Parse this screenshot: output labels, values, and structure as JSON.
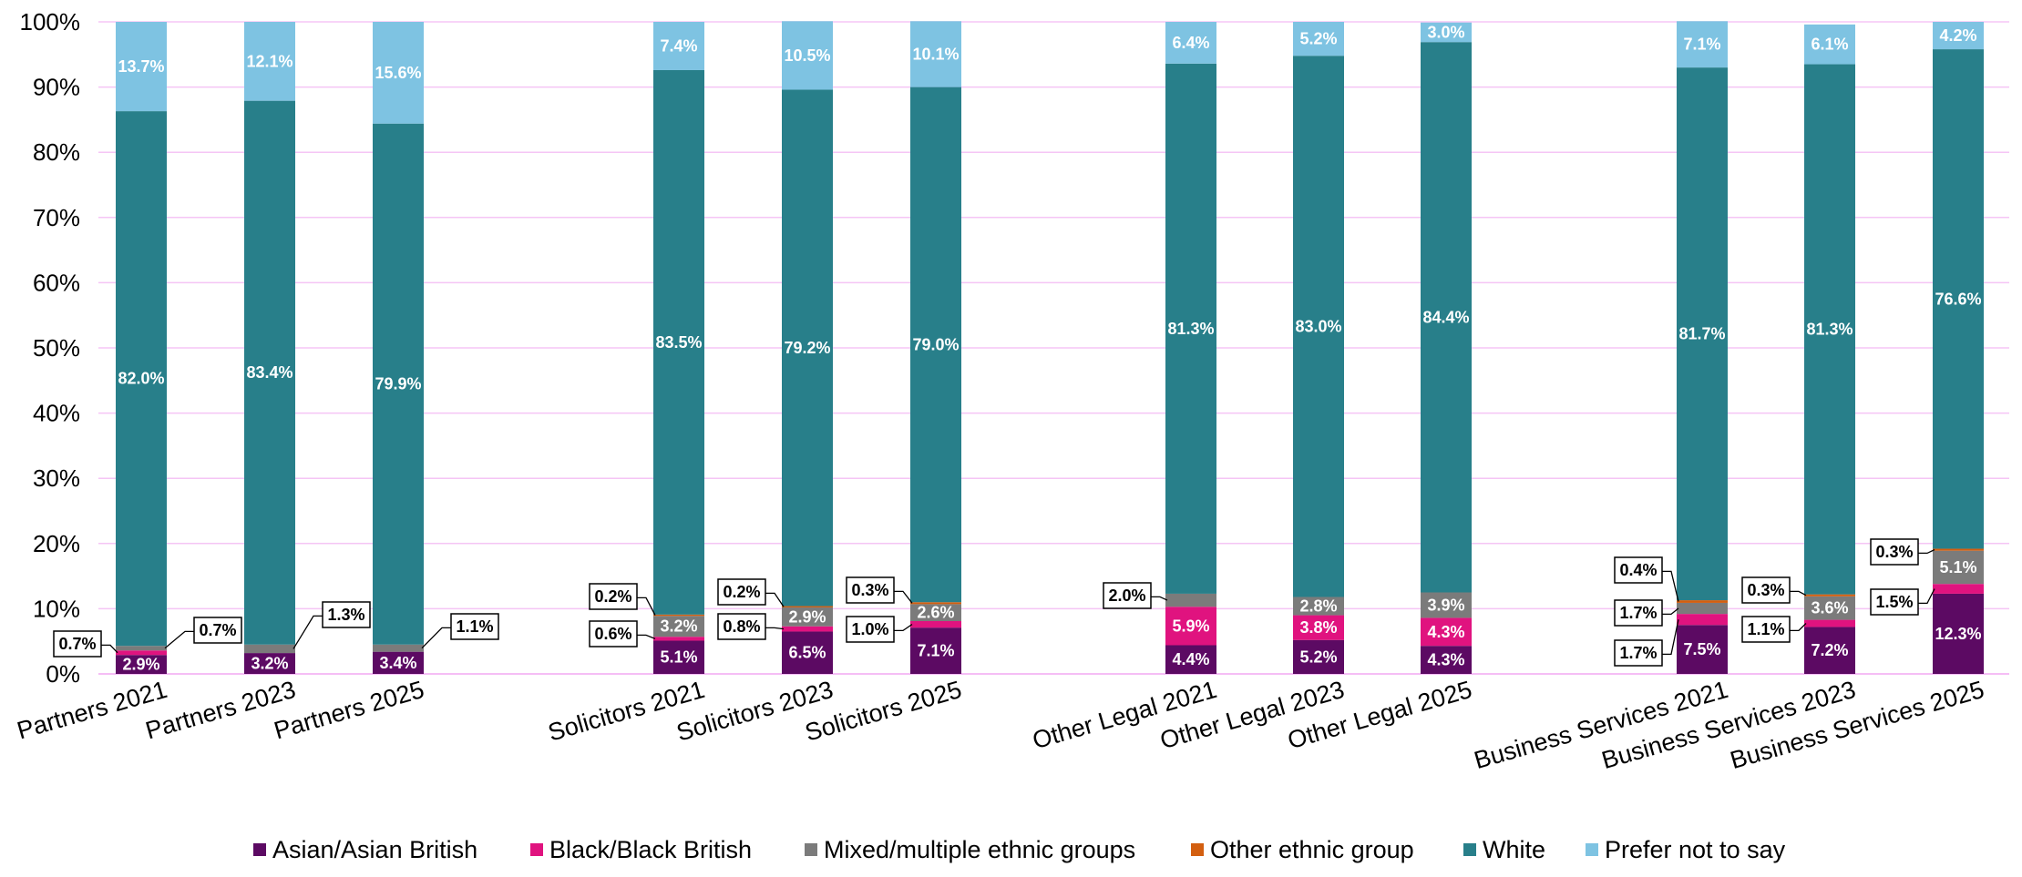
{
  "chart_data": {
    "type": "bar",
    "stacked": true,
    "categories": [
      "Partners 2021",
      "Partners 2023",
      "Partners 2025",
      "Solicitors 2021",
      "Solicitors 2023",
      "Solicitors 2025",
      "Other Legal 2021",
      "Other Legal 2023",
      "Other Legal 2025",
      "Business Services 2021",
      "Business Services 2023",
      "Business Services 2025"
    ],
    "groups": [
      [
        0,
        1,
        2
      ],
      [
        3,
        4,
        5
      ],
      [
        6,
        7,
        8
      ],
      [
        9,
        10,
        11
      ]
    ],
    "ylim": [
      0,
      100
    ],
    "yticks": [
      "0%",
      "10%",
      "20%",
      "30%",
      "40%",
      "50%",
      "60%",
      "70%",
      "80%",
      "90%",
      "100%"
    ],
    "grid": true,
    "legend_position": "bottom",
    "series": [
      {
        "name": "Asian/Asian British",
        "color": "#5c0a63",
        "values": [
          2.9,
          3.2,
          3.4,
          5.1,
          6.5,
          7.1,
          4.4,
          5.2,
          4.3,
          7.5,
          7.2,
          12.3
        ]
      },
      {
        "name": "Black/Black British",
        "color": "#e0137f",
        "values": [
          0.7,
          0.0,
          0.0,
          0.6,
          0.8,
          1.0,
          5.9,
          3.8,
          4.3,
          1.7,
          1.1,
          1.5
        ]
      },
      {
        "name": "Mixed/multiple ethnic groups",
        "color": "#7b7b7b",
        "values": [
          0.7,
          1.3,
          1.1,
          3.2,
          2.9,
          2.6,
          2.0,
          2.8,
          3.9,
          1.7,
          3.6,
          5.1
        ]
      },
      {
        "name": "Other ethnic group",
        "color": "#d35f10",
        "values": [
          0.0,
          0.0,
          0.0,
          0.2,
          0.2,
          0.3,
          0.0,
          0.0,
          0.0,
          0.4,
          0.3,
          0.3
        ]
      },
      {
        "name": "White",
        "color": "#287f8a",
        "values": [
          82.0,
          83.4,
          79.9,
          83.5,
          79.2,
          79.0,
          81.3,
          83.0,
          84.4,
          81.7,
          81.3,
          76.6
        ]
      },
      {
        "name": "Prefer not to say",
        "color": "#7ec3e2",
        "values": [
          13.7,
          12.1,
          15.6,
          7.4,
          10.5,
          10.1,
          6.4,
          5.2,
          3.0,
          7.1,
          6.1,
          4.2
        ]
      }
    ],
    "labels": [
      [
        "2.9%",
        "0.7%",
        "0.7%",
        "",
        "82.0%",
        "13.7%"
      ],
      [
        "3.2%",
        "",
        "1.3%",
        "",
        "83.4%",
        "12.1%"
      ],
      [
        "3.4%",
        "",
        "1.1%",
        "",
        "79.9%",
        "15.6%"
      ],
      [
        "5.1%",
        "0.6%",
        "3.2%",
        "0.2%",
        "83.5%",
        "7.4%"
      ],
      [
        "6.5%",
        "0.8%",
        "2.9%",
        "0.2%",
        "79.2%",
        "10.5%"
      ],
      [
        "7.1%",
        "1.0%",
        "2.6%",
        "0.3%",
        "79.0%",
        "10.1%"
      ],
      [
        "4.4%",
        "5.9%",
        "2.0%",
        "",
        "81.3%",
        "6.4%"
      ],
      [
        "5.2%",
        "3.8%",
        "2.8%",
        "",
        "83.0%",
        "5.2%"
      ],
      [
        "4.3%",
        "4.3%",
        "3.9%",
        "",
        "84.4%",
        "3.0%"
      ],
      [
        "7.5%",
        "1.7%",
        "1.7%",
        "0.4%",
        "81.7%",
        "7.1%"
      ],
      [
        "7.2%",
        "1.1%",
        "3.6%",
        "0.3%",
        "81.3%",
        "6.1%"
      ],
      [
        "12.3%",
        "1.5%",
        "5.1%",
        "0.3%",
        "76.6%",
        "4.2%"
      ]
    ],
    "callouts": [
      {
        "bar": 0,
        "series": 1,
        "side": "left"
      },
      {
        "bar": 0,
        "series": 2,
        "side": "right"
      },
      {
        "bar": 1,
        "series": 2,
        "side": "right"
      },
      {
        "bar": 2,
        "series": 2,
        "side": "right"
      },
      {
        "bar": 3,
        "series": 1,
        "side": "left"
      },
      {
        "bar": 3,
        "series": 3,
        "side": "left"
      },
      {
        "bar": 4,
        "series": 1,
        "side": "left"
      },
      {
        "bar": 4,
        "series": 3,
        "side": "left"
      },
      {
        "bar": 5,
        "series": 1,
        "side": "left"
      },
      {
        "bar": 5,
        "series": 3,
        "side": "left"
      },
      {
        "bar": 6,
        "series": 2,
        "side": "left"
      },
      {
        "bar": 9,
        "series": 1,
        "side": "left"
      },
      {
        "bar": 9,
        "series": 2,
        "side": "left-low"
      },
      {
        "bar": 9,
        "series": 3,
        "side": "left"
      },
      {
        "bar": 10,
        "series": 1,
        "side": "left"
      },
      {
        "bar": 10,
        "series": 3,
        "side": "left"
      },
      {
        "bar": 11,
        "series": 1,
        "side": "left"
      },
      {
        "bar": 11,
        "series": 3,
        "side": "left"
      }
    ]
  }
}
